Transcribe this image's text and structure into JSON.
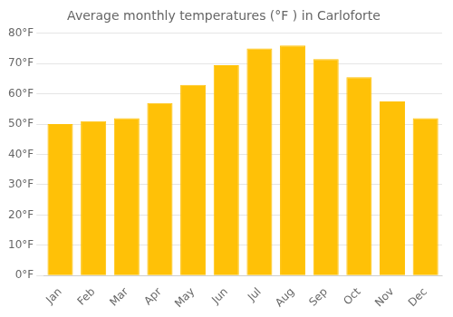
{
  "chart_data": {
    "type": "bar",
    "title": "Average monthly temperatures (°F ) in Carloforte",
    "categories": [
      "Jan",
      "Feb",
      "Mar",
      "Apr",
      "May",
      "Jun",
      "Jul",
      "Aug",
      "Sep",
      "Oct",
      "Nov",
      "Dec"
    ],
    "values": [
      50.0,
      51.0,
      52.0,
      57.0,
      63.0,
      69.5,
      75.0,
      76.0,
      71.5,
      65.5,
      57.5,
      52.0
    ],
    "color": "#FFC107",
    "ylim": [
      0,
      80
    ],
    "yticks": [
      {
        "value": 0,
        "label": "0°F"
      },
      {
        "value": 10,
        "label": "10°F"
      },
      {
        "value": 20,
        "label": "20°F"
      },
      {
        "value": 30,
        "label": "30°F"
      },
      {
        "value": 40,
        "label": "40°F"
      },
      {
        "value": 50,
        "label": "50°F"
      },
      {
        "value": 60,
        "label": "60°F"
      },
      {
        "value": 70,
        "label": "70°F"
      },
      {
        "value": 80,
        "label": "80°F"
      }
    ],
    "grid": true
  }
}
